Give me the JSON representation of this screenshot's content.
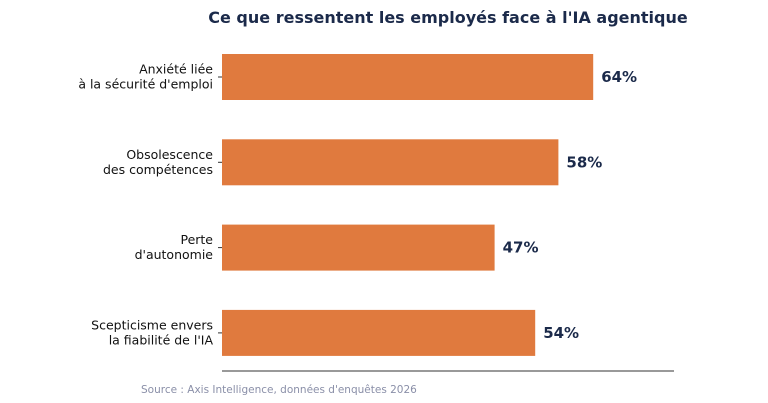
{
  "chart_data": {
    "type": "bar",
    "orientation": "horizontal",
    "title": "Ce que ressentent les employés face à l'IA agentique",
    "categories": [
      [
        "Anxiété liée",
        "à la sécurité d'emploi"
      ],
      [
        "Obsolescence",
        "des compétences"
      ],
      [
        "Perte",
        "d'autonomie"
      ],
      [
        "Scepticisme envers",
        "la fiabilité de l'IA"
      ]
    ],
    "values": [
      64,
      58,
      47,
      54
    ],
    "value_labels": [
      "64%",
      "58%",
      "47%",
      "54%"
    ],
    "xlim": [
      0,
      78
    ],
    "grid": false,
    "source": "Source : Axis Intelligence, données d'enquêtes 2026"
  },
  "colors": {
    "bar": "#E07A3E",
    "title": "#1B2A4A",
    "value_label": "#1B2A4A",
    "source": "#8A8FA8",
    "axis": "#333333"
  }
}
